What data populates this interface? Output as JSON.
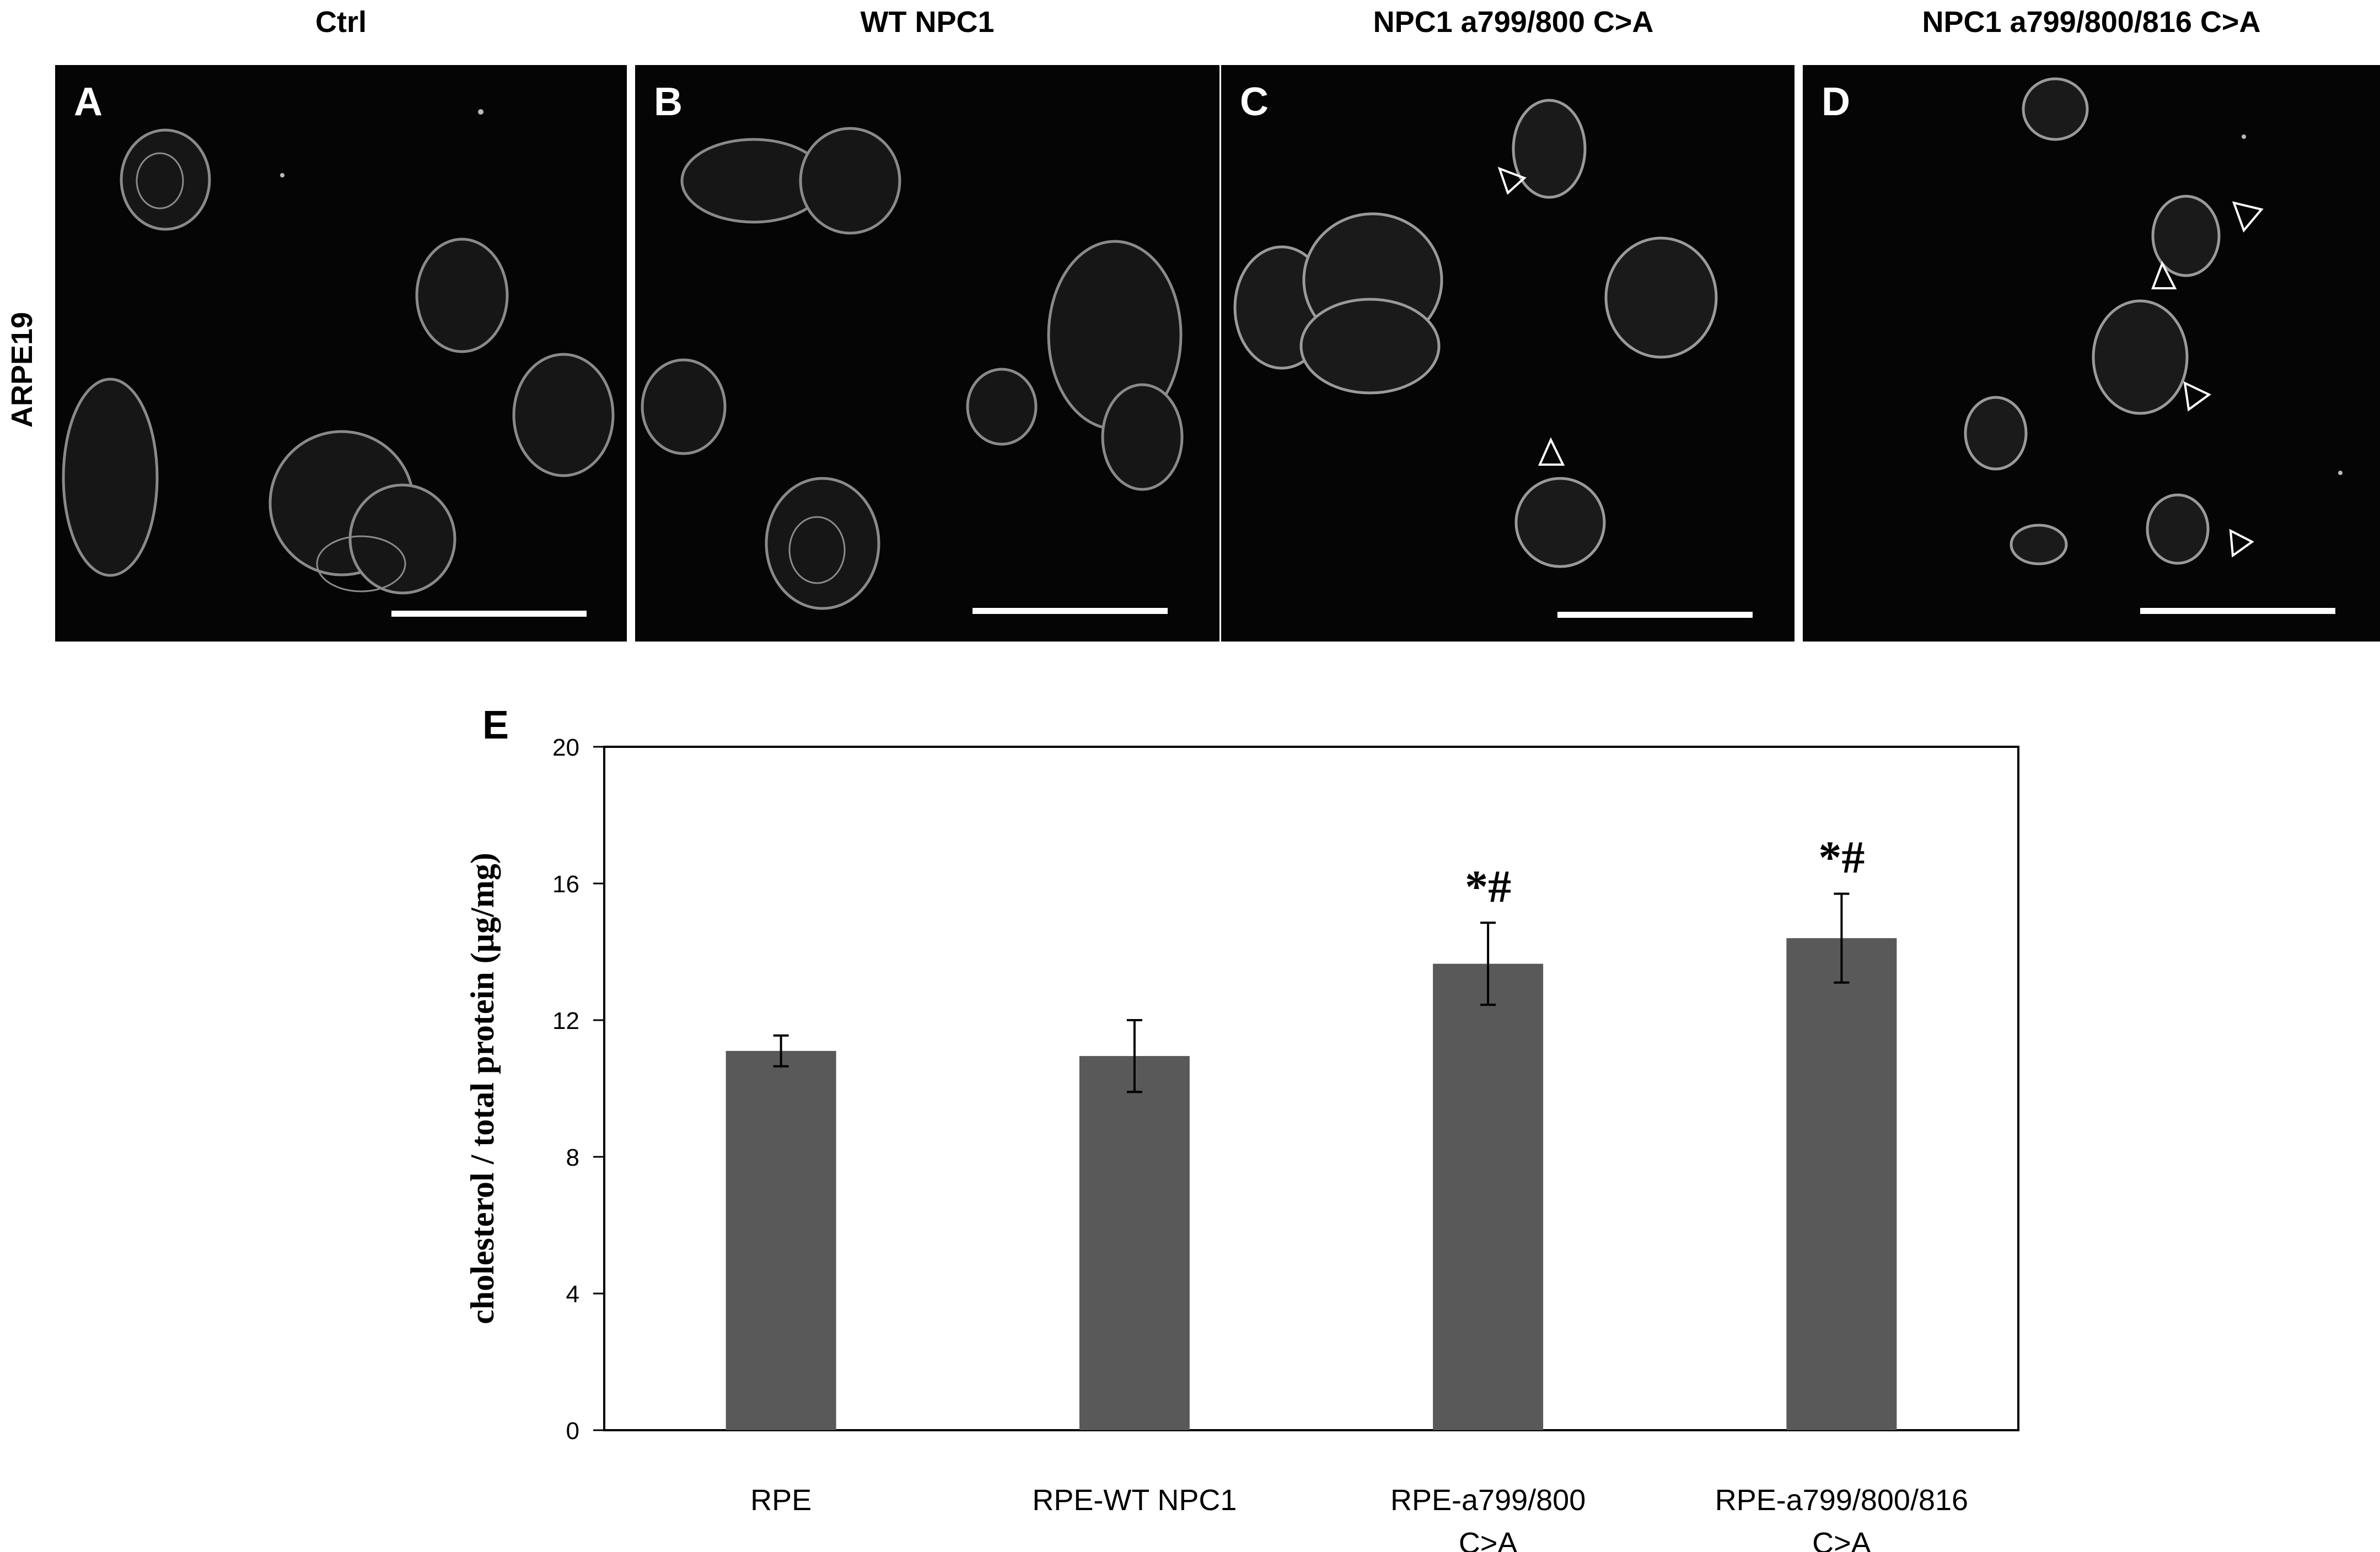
{
  "figure": {
    "row_label": "ARPE19",
    "panels": [
      {
        "letter": "A",
        "title": "Ctrl"
      },
      {
        "letter": "B",
        "title": "WT NPC1"
      },
      {
        "letter": "C",
        "title": "NPC1 a799/800 C>A"
      },
      {
        "letter": "D",
        "title": "NPC1 a799/800/816 C>A"
      }
    ],
    "chart_letter": "E"
  },
  "chart_data": {
    "type": "bar",
    "ylabel": "cholesterol / total protein (µg/mg)",
    "xlabel": "",
    "ylim": [
      0,
      20
    ],
    "yticks": [
      0,
      4,
      8,
      12,
      16,
      20
    ],
    "categories": [
      [
        "RPE"
      ],
      [
        "RPE-WT NPC1"
      ],
      [
        "RPE-a799/800",
        "C>A"
      ],
      [
        "RPE-a799/800/816",
        "C>A"
      ]
    ],
    "values": [
      11.1,
      10.95,
      13.65,
      14.4
    ],
    "errors": [
      0.45,
      1.05,
      1.2,
      1.3
    ],
    "annotations": [
      "",
      "",
      "*#",
      "*#"
    ],
    "bar_color": "#595959",
    "grid": false,
    "legend": "none"
  }
}
